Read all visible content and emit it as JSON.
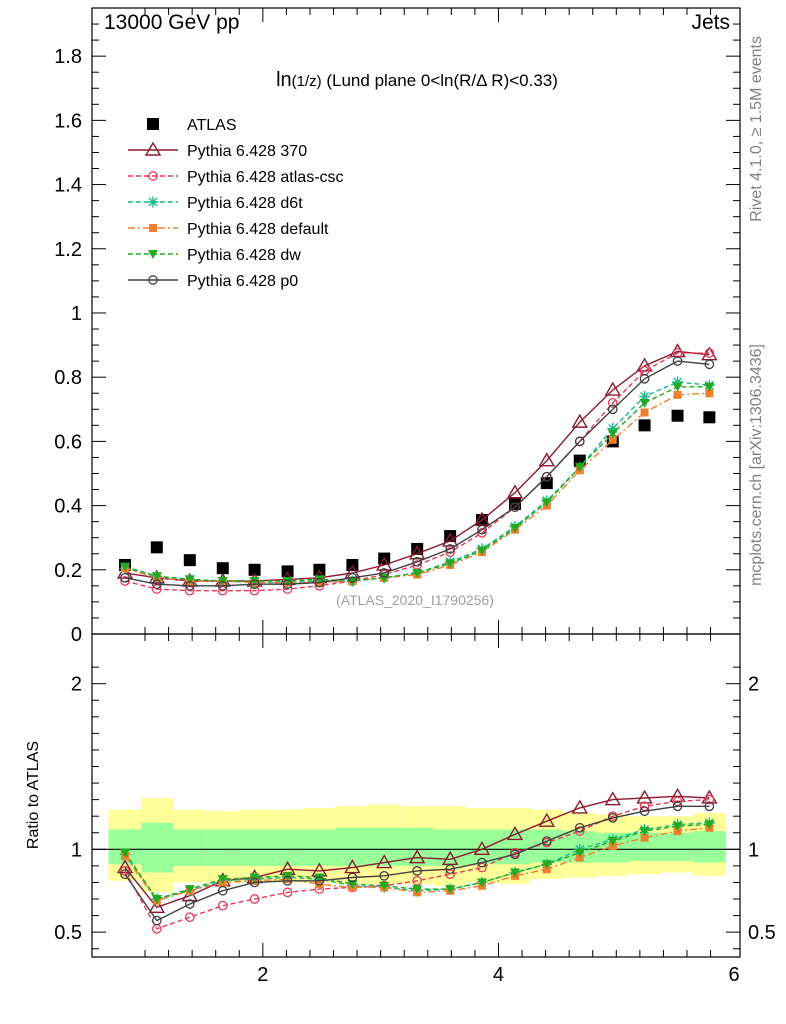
{
  "header": {
    "energy_label": "13000 GeV pp",
    "process_label": "Jets",
    "side_label_rivet": "Rivet 4.1.0, ≥ 1.5M events",
    "side_label_mcplots": "mcplots.cern.ch [arXiv:1306.3436]",
    "watermark": "(ATLAS_2020_I1790256)"
  },
  "chart_data": [
    {
      "type": "scatter",
      "title_main": "ln",
      "title_fraction": "(1/z)",
      "title_rest": " (Lund plane 0<ln(R/Δ R)<0.33)",
      "xlim": [
        0.55,
        6.05
      ],
      "ylim": [
        0,
        1.95
      ],
      "y_ticks": [
        0,
        0.2,
        0.4,
        0.6,
        0.8,
        1,
        1.2,
        1.4,
        1.6,
        1.8
      ],
      "y_tick_labels": [
        "0",
        "0.2",
        "0.4",
        "0.6",
        "0.8",
        "1",
        "1.2",
        "1.4",
        "1.6",
        "1.8"
      ],
      "x": [
        0.83,
        1.1,
        1.38,
        1.66,
        1.93,
        2.21,
        2.48,
        2.76,
        3.03,
        3.31,
        3.59,
        3.86,
        4.14,
        4.41,
        4.69,
        4.97,
        5.24,
        5.52,
        5.79
      ],
      "series": [
        {
          "name": "ATLAS",
          "values": [
            0.215,
            0.27,
            0.23,
            0.205,
            0.2,
            0.195,
            0.2,
            0.215,
            0.235,
            0.265,
            0.305,
            0.355,
            0.405,
            0.47,
            0.54,
            0.6,
            0.65,
            0.68,
            0.675
          ],
          "color": "#000000",
          "marker": "filled-square",
          "line": "none"
        },
        {
          "name": "Pythia 6.428 370",
          "values": [
            0.19,
            0.175,
            0.165,
            0.165,
            0.165,
            0.17,
            0.175,
            0.19,
            0.215,
            0.25,
            0.29,
            0.355,
            0.44,
            0.54,
            0.66,
            0.76,
            0.835,
            0.88,
            0.87
          ],
          "color": "#8b1a2e",
          "marker": "open-triangle",
          "line": "solid"
        },
        {
          "name": "Pythia 6.428 atlas-csc",
          "values": [
            0.165,
            0.14,
            0.135,
            0.135,
            0.135,
            0.14,
            0.15,
            0.165,
            0.185,
            0.215,
            0.255,
            0.315,
            0.395,
            0.49,
            0.6,
            0.72,
            0.82,
            0.875,
            0.875
          ],
          "color": "#e8395a",
          "marker": "open-circle",
          "line": "dashed"
        },
        {
          "name": "Pythia 6.428 d6t",
          "values": [
            0.205,
            0.18,
            0.17,
            0.165,
            0.16,
            0.16,
            0.165,
            0.165,
            0.175,
            0.19,
            0.225,
            0.265,
            0.335,
            0.415,
            0.52,
            0.64,
            0.74,
            0.785,
            0.775
          ],
          "color": "#1db98c",
          "marker": "star",
          "line": "dashed"
        },
        {
          "name": "Pythia 6.428 default",
          "values": [
            0.205,
            0.175,
            0.165,
            0.165,
            0.16,
            0.16,
            0.16,
            0.165,
            0.175,
            0.185,
            0.215,
            0.255,
            0.325,
            0.4,
            0.51,
            0.605,
            0.69,
            0.745,
            0.75
          ],
          "color": "#f08030",
          "marker": "filled-square-small",
          "line": "dashdot"
        },
        {
          "name": "Pythia 6.428 dw",
          "values": [
            0.21,
            0.18,
            0.17,
            0.165,
            0.165,
            0.165,
            0.17,
            0.165,
            0.175,
            0.19,
            0.22,
            0.26,
            0.33,
            0.41,
            0.52,
            0.625,
            0.72,
            0.77,
            0.77
          ],
          "color": "#22aa22",
          "marker": "filled-triangle-down",
          "line": "dashed"
        },
        {
          "name": "Pythia 6.428 p0",
          "values": [
            0.175,
            0.155,
            0.15,
            0.15,
            0.155,
            0.155,
            0.16,
            0.175,
            0.19,
            0.225,
            0.265,
            0.325,
            0.395,
            0.49,
            0.6,
            0.7,
            0.795,
            0.85,
            0.84
          ],
          "color": "#404040",
          "marker": "open-circle",
          "line": "solid"
        }
      ]
    },
    {
      "type": "scatter",
      "ylabel": "Ratio to ATLAS",
      "xlim": [
        0.55,
        6.05
      ],
      "ylim": [
        0.35,
        2.3
      ],
      "y_ticks": [
        0.5,
        1,
        2
      ],
      "y_tick_labels": [
        "0.5",
        "1",
        "2"
      ],
      "x_ticks": [
        2,
        4,
        6
      ],
      "x_tick_labels": [
        "2",
        "4",
        "6"
      ],
      "x": [
        0.83,
        1.1,
        1.38,
        1.66,
        1.93,
        2.21,
        2.48,
        2.76,
        3.03,
        3.31,
        3.59,
        3.86,
        4.14,
        4.41,
        4.69,
        4.97,
        5.24,
        5.52,
        5.79
      ],
      "band_edges": [
        0.69,
        0.97,
        1.24,
        1.52,
        1.79,
        2.07,
        2.34,
        2.62,
        2.89,
        3.17,
        3.45,
        3.72,
        4.0,
        4.27,
        4.55,
        4.83,
        5.1,
        5.38,
        5.65,
        5.93
      ],
      "band_yellow": {
        "lo": [
          0.81,
          0.74,
          0.8,
          0.8,
          0.8,
          0.8,
          0.8,
          0.79,
          0.79,
          0.79,
          0.78,
          0.8,
          0.79,
          0.82,
          0.83,
          0.84,
          0.85,
          0.86,
          0.84
        ],
        "hi": [
          1.24,
          1.31,
          1.24,
          1.23,
          1.24,
          1.24,
          1.25,
          1.26,
          1.27,
          1.26,
          1.26,
          1.25,
          1.25,
          1.24,
          1.22,
          1.21,
          1.2,
          1.2,
          1.22
        ]
      },
      "band_green": {
        "lo": [
          0.91,
          0.86,
          0.9,
          0.9,
          0.9,
          0.9,
          0.9,
          0.9,
          0.9,
          0.9,
          0.9,
          0.91,
          0.91,
          0.92,
          0.92,
          0.92,
          0.93,
          0.93,
          0.92
        ],
        "hi": [
          1.12,
          1.16,
          1.12,
          1.12,
          1.12,
          1.12,
          1.12,
          1.13,
          1.13,
          1.13,
          1.12,
          1.12,
          1.12,
          1.12,
          1.11,
          1.1,
          1.1,
          1.1,
          1.11
        ]
      },
      "series": [
        {
          "name": "Pythia 6.428 370",
          "values": [
            0.89,
            0.65,
            0.72,
            0.81,
            0.83,
            0.88,
            0.87,
            0.89,
            0.92,
            0.95,
            0.94,
            1.0,
            1.09,
            1.17,
            1.25,
            1.3,
            1.31,
            1.32,
            1.31
          ],
          "color": "#8b1a2e",
          "marker": "open-triangle",
          "line": "solid"
        },
        {
          "name": "Pythia 6.428 atlas-csc",
          "values": [
            0.87,
            0.52,
            0.59,
            0.66,
            0.7,
            0.74,
            0.76,
            0.77,
            0.78,
            0.81,
            0.85,
            0.89,
            0.98,
            1.04,
            1.11,
            1.2,
            1.26,
            1.29,
            1.3
          ],
          "color": "#e8395a",
          "marker": "open-circle",
          "line": "dashed"
        },
        {
          "name": "Pythia 6.428 d6t",
          "values": [
            0.97,
            0.7,
            0.75,
            0.81,
            0.82,
            0.83,
            0.82,
            0.78,
            0.77,
            0.75,
            0.76,
            0.8,
            0.86,
            0.91,
            1.0,
            1.06,
            1.12,
            1.15,
            1.16
          ]
        },
        {
          "name": "Pythia 6.428 default",
          "values": [
            0.96,
            0.69,
            0.75,
            0.8,
            0.81,
            0.82,
            0.79,
            0.77,
            0.77,
            0.74,
            0.75,
            0.78,
            0.84,
            0.88,
            0.95,
            1.02,
            1.07,
            1.11,
            1.13
          ]
        },
        {
          "name": "Pythia 6.428 dw",
          "values": [
            0.98,
            0.7,
            0.76,
            0.82,
            0.83,
            0.84,
            0.83,
            0.79,
            0.78,
            0.76,
            0.76,
            0.8,
            0.86,
            0.91,
            0.98,
            1.05,
            1.11,
            1.14,
            1.15
          ]
        },
        {
          "name": "Pythia 6.428 p0",
          "values": [
            0.85,
            0.57,
            0.67,
            0.75,
            0.8,
            0.81,
            0.81,
            0.83,
            0.84,
            0.87,
            0.88,
            0.92,
            0.97,
            1.05,
            1.13,
            1.19,
            1.23,
            1.26,
            1.26
          ]
        }
      ]
    }
  ]
}
